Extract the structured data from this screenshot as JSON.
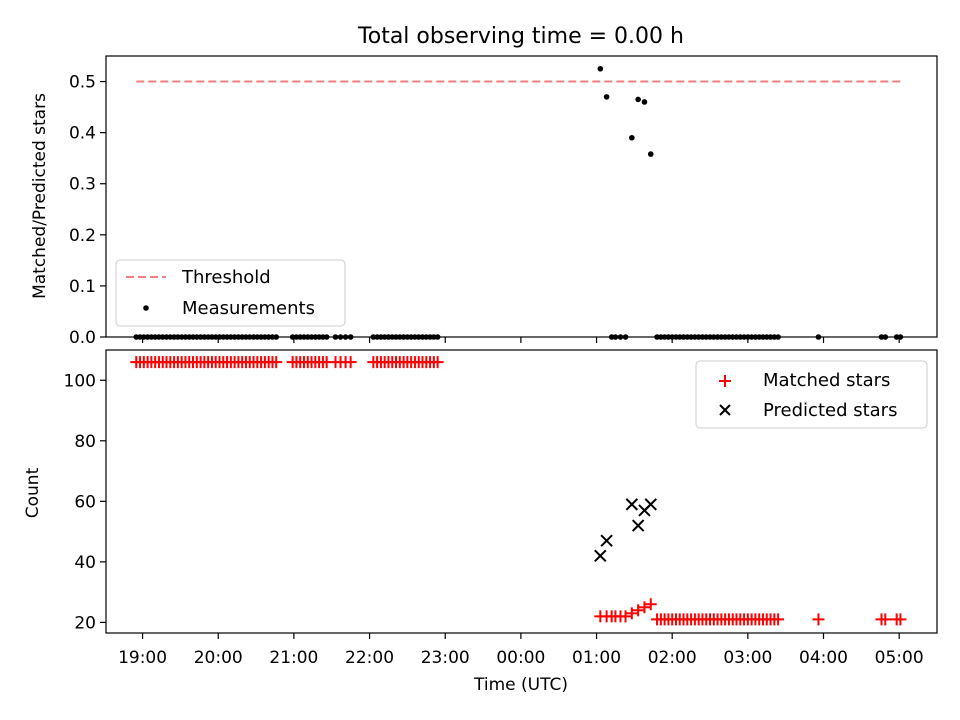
{
  "title": "Total observing time = 0.00 h",
  "colors": {
    "threshold": "#f08080",
    "measurements": "#000000",
    "matched": "#ff0000",
    "predicted": "#000000"
  },
  "chart_data": [
    {
      "type": "scatter",
      "panel": "top",
      "ylabel": "Matched/Predicted stars",
      "xlabel": "",
      "xlim": [
        "18:31",
        "05:30"
      ],
      "ylim": [
        0,
        0.55
      ],
      "yticks": [
        0.0,
        0.1,
        0.2,
        0.3,
        0.4,
        0.5
      ],
      "ytick_labels": [
        "0.0",
        "0.1",
        "0.2",
        "0.3",
        "0.4",
        "0.5"
      ],
      "legend": {
        "location": "lower left",
        "entries": [
          "Threshold",
          "Measurements"
        ]
      },
      "threshold": {
        "name": "Threshold",
        "value": 0.5,
        "x_range": [
          "18:55",
          "05:01"
        ],
        "style": "dashed"
      },
      "series": [
        {
          "name": "Measurements",
          "marker": "dot",
          "points": [
            [
              "18:55",
              0
            ],
            [
              "18:58",
              0
            ],
            [
              "19:01",
              0
            ],
            [
              "19:04",
              0
            ],
            [
              "19:07",
              0
            ],
            [
              "19:10",
              0
            ],
            [
              "19:13",
              0
            ],
            [
              "19:16",
              0
            ],
            [
              "19:19",
              0
            ],
            [
              "19:22",
              0
            ],
            [
              "19:25",
              0
            ],
            [
              "19:28",
              0
            ],
            [
              "19:31",
              0
            ],
            [
              "19:34",
              0
            ],
            [
              "19:37",
              0
            ],
            [
              "19:40",
              0
            ],
            [
              "19:43",
              0
            ],
            [
              "19:46",
              0
            ],
            [
              "19:49",
              0
            ],
            [
              "19:52",
              0
            ],
            [
              "19:55",
              0
            ],
            [
              "19:58",
              0
            ],
            [
              "20:01",
              0
            ],
            [
              "20:04",
              0
            ],
            [
              "20:07",
              0
            ],
            [
              "20:10",
              0
            ],
            [
              "20:13",
              0
            ],
            [
              "20:16",
              0
            ],
            [
              "20:19",
              0
            ],
            [
              "20:22",
              0
            ],
            [
              "20:25",
              0
            ],
            [
              "20:28",
              0
            ],
            [
              "20:31",
              0
            ],
            [
              "20:34",
              0
            ],
            [
              "20:37",
              0
            ],
            [
              "20:40",
              0
            ],
            [
              "20:43",
              0
            ],
            [
              "20:46",
              0
            ],
            [
              "20:59",
              0
            ],
            [
              "21:02",
              0
            ],
            [
              "21:05",
              0
            ],
            [
              "21:08",
              0
            ],
            [
              "21:11",
              0
            ],
            [
              "21:14",
              0
            ],
            [
              "21:17",
              0
            ],
            [
              "21:20",
              0
            ],
            [
              "21:23",
              0
            ],
            [
              "21:26",
              0
            ],
            [
              "21:33",
              0
            ],
            [
              "21:37",
              0
            ],
            [
              "21:41",
              0
            ],
            [
              "21:45",
              0
            ],
            [
              "22:03",
              0
            ],
            [
              "22:06",
              0
            ],
            [
              "22:09",
              0
            ],
            [
              "22:12",
              0
            ],
            [
              "22:15",
              0
            ],
            [
              "22:18",
              0
            ],
            [
              "22:21",
              0
            ],
            [
              "22:24",
              0
            ],
            [
              "22:27",
              0
            ],
            [
              "22:30",
              0
            ],
            [
              "22:33",
              0
            ],
            [
              "22:36",
              0
            ],
            [
              "22:39",
              0
            ],
            [
              "22:42",
              0
            ],
            [
              "22:45",
              0
            ],
            [
              "22:48",
              0
            ],
            [
              "22:51",
              0
            ],
            [
              "22:54",
              0
            ],
            [
              "01:03",
              0.525
            ],
            [
              "01:08",
              0.47
            ],
            [
              "01:12",
              0
            ],
            [
              "01:15",
              0
            ],
            [
              "01:19",
              0
            ],
            [
              "01:23",
              0
            ],
            [
              "01:28",
              0.39
            ],
            [
              "01:33",
              0.465
            ],
            [
              "01:38",
              0.46
            ],
            [
              "01:43",
              0.358
            ],
            [
              "01:48",
              0
            ],
            [
              "01:51",
              0
            ],
            [
              "01:54",
              0
            ],
            [
              "01:57",
              0
            ],
            [
              "02:00",
              0
            ],
            [
              "02:03",
              0
            ],
            [
              "02:06",
              0
            ],
            [
              "02:09",
              0
            ],
            [
              "02:12",
              0
            ],
            [
              "02:15",
              0
            ],
            [
              "02:18",
              0
            ],
            [
              "02:21",
              0
            ],
            [
              "02:24",
              0
            ],
            [
              "02:27",
              0
            ],
            [
              "02:30",
              0
            ],
            [
              "02:33",
              0
            ],
            [
              "02:36",
              0
            ],
            [
              "02:39",
              0
            ],
            [
              "02:42",
              0
            ],
            [
              "02:45",
              0
            ],
            [
              "02:48",
              0
            ],
            [
              "02:51",
              0
            ],
            [
              "02:54",
              0
            ],
            [
              "02:57",
              0
            ],
            [
              "03:00",
              0
            ],
            [
              "03:03",
              0
            ],
            [
              "03:06",
              0
            ],
            [
              "03:09",
              0
            ],
            [
              "03:12",
              0
            ],
            [
              "03:15",
              0
            ],
            [
              "03:18",
              0
            ],
            [
              "03:21",
              0
            ],
            [
              "03:24",
              0
            ],
            [
              "03:56",
              0
            ],
            [
              "04:46",
              0
            ],
            [
              "04:49",
              0
            ],
            [
              "04:58",
              0
            ],
            [
              "05:01",
              0
            ]
          ]
        }
      ]
    },
    {
      "type": "scatter",
      "panel": "bottom",
      "ylabel": "Count",
      "xlabel": "Time (UTC)",
      "xlim": [
        "18:31",
        "05:30"
      ],
      "ylim": [
        16.5,
        110
      ],
      "yticks": [
        20,
        40,
        60,
        80,
        100
      ],
      "ytick_labels": [
        "20",
        "40",
        "60",
        "80",
        "100"
      ],
      "xticks": [
        "19:00",
        "20:00",
        "21:00",
        "22:00",
        "23:00",
        "00:00",
        "01:00",
        "02:00",
        "03:00",
        "04:00",
        "05:00"
      ],
      "legend": {
        "location": "upper right",
        "entries": [
          "Matched stars",
          "Predicted stars"
        ]
      },
      "series": [
        {
          "name": "Matched stars",
          "marker": "plus",
          "points": [
            [
              "18:55",
              106
            ],
            [
              "18:58",
              106
            ],
            [
              "19:01",
              106
            ],
            [
              "19:04",
              106
            ],
            [
              "19:07",
              106
            ],
            [
              "19:10",
              106
            ],
            [
              "19:13",
              106
            ],
            [
              "19:16",
              106
            ],
            [
              "19:19",
              106
            ],
            [
              "19:22",
              106
            ],
            [
              "19:25",
              106
            ],
            [
              "19:28",
              106
            ],
            [
              "19:31",
              106
            ],
            [
              "19:34",
              106
            ],
            [
              "19:37",
              106
            ],
            [
              "19:40",
              106
            ],
            [
              "19:43",
              106
            ],
            [
              "19:46",
              106
            ],
            [
              "19:49",
              106
            ],
            [
              "19:52",
              106
            ],
            [
              "19:55",
              106
            ],
            [
              "19:58",
              106
            ],
            [
              "20:01",
              106
            ],
            [
              "20:04",
              106
            ],
            [
              "20:07",
              106
            ],
            [
              "20:10",
              106
            ],
            [
              "20:13",
              106
            ],
            [
              "20:16",
              106
            ],
            [
              "20:19",
              106
            ],
            [
              "20:22",
              106
            ],
            [
              "20:25",
              106
            ],
            [
              "20:28",
              106
            ],
            [
              "20:31",
              106
            ],
            [
              "20:34",
              106
            ],
            [
              "20:37",
              106
            ],
            [
              "20:40",
              106
            ],
            [
              "20:43",
              106
            ],
            [
              "20:46",
              106
            ],
            [
              "20:59",
              106
            ],
            [
              "21:02",
              106
            ],
            [
              "21:05",
              106
            ],
            [
              "21:08",
              106
            ],
            [
              "21:11",
              106
            ],
            [
              "21:14",
              106
            ],
            [
              "21:17",
              106
            ],
            [
              "21:20",
              106
            ],
            [
              "21:23",
              106
            ],
            [
              "21:26",
              106
            ],
            [
              "21:33",
              106
            ],
            [
              "21:37",
              106
            ],
            [
              "21:41",
              106
            ],
            [
              "21:45",
              106
            ],
            [
              "22:03",
              106
            ],
            [
              "22:06",
              106
            ],
            [
              "22:09",
              106
            ],
            [
              "22:12",
              106
            ],
            [
              "22:15",
              106
            ],
            [
              "22:18",
              106
            ],
            [
              "22:21",
              106
            ],
            [
              "22:24",
              106
            ],
            [
              "22:27",
              106
            ],
            [
              "22:30",
              106
            ],
            [
              "22:33",
              106
            ],
            [
              "22:36",
              106
            ],
            [
              "22:39",
              106
            ],
            [
              "22:42",
              106
            ],
            [
              "22:45",
              106
            ],
            [
              "22:48",
              106
            ],
            [
              "22:51",
              106
            ],
            [
              "22:54",
              106
            ],
            [
              "01:03",
              22
            ],
            [
              "01:08",
              22
            ],
            [
              "01:12",
              22
            ],
            [
              "01:15",
              22
            ],
            [
              "01:19",
              22
            ],
            [
              "01:23",
              22
            ],
            [
              "01:28",
              23
            ],
            [
              "01:33",
              24
            ],
            [
              "01:38",
              25
            ],
            [
              "01:43",
              26
            ],
            [
              "01:48",
              21
            ],
            [
              "01:51",
              21
            ],
            [
              "01:54",
              21
            ],
            [
              "01:57",
              21
            ],
            [
              "02:00",
              21
            ],
            [
              "02:03",
              21
            ],
            [
              "02:06",
              21
            ],
            [
              "02:09",
              21
            ],
            [
              "02:12",
              21
            ],
            [
              "02:15",
              21
            ],
            [
              "02:18",
              21
            ],
            [
              "02:21",
              21
            ],
            [
              "02:24",
              21
            ],
            [
              "02:27",
              21
            ],
            [
              "02:30",
              21
            ],
            [
              "02:33",
              21
            ],
            [
              "02:36",
              21
            ],
            [
              "02:39",
              21
            ],
            [
              "02:42",
              21
            ],
            [
              "02:45",
              21
            ],
            [
              "02:48",
              21
            ],
            [
              "02:51",
              21
            ],
            [
              "02:54",
              21
            ],
            [
              "02:57",
              21
            ],
            [
              "03:00",
              21
            ],
            [
              "03:03",
              21
            ],
            [
              "03:06",
              21
            ],
            [
              "03:09",
              21
            ],
            [
              "03:12",
              21
            ],
            [
              "03:15",
              21
            ],
            [
              "03:18",
              21
            ],
            [
              "03:21",
              21
            ],
            [
              "03:24",
              21
            ],
            [
              "03:56",
              21
            ],
            [
              "04:46",
              21
            ],
            [
              "04:49",
              21
            ],
            [
              "04:58",
              21
            ],
            [
              "05:01",
              21
            ]
          ]
        },
        {
          "name": "Predicted stars",
          "marker": "x",
          "points": [
            [
              "01:03",
              42
            ],
            [
              "01:08",
              47
            ],
            [
              "01:28",
              59
            ],
            [
              "01:33",
              52
            ],
            [
              "01:38",
              57
            ],
            [
              "01:43",
              59
            ]
          ]
        }
      ]
    }
  ]
}
